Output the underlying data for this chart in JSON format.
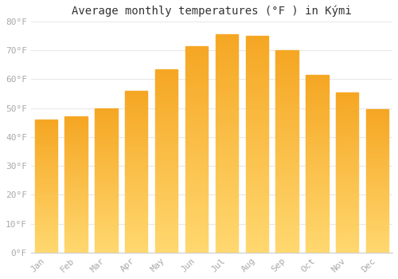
{
  "title": "Average monthly temperatures (°F ) in Kými",
  "months": [
    "Jan",
    "Feb",
    "Mar",
    "Apr",
    "May",
    "Jun",
    "Jul",
    "Aug",
    "Sep",
    "Oct",
    "Nov",
    "Dec"
  ],
  "values": [
    46,
    47,
    50,
    56,
    63.5,
    71.5,
    75.5,
    75,
    70,
    61.5,
    55.5,
    49.5
  ],
  "bar_color_top": "#F5A623",
  "bar_color_bottom": "#FFD870",
  "ylim": [
    0,
    80
  ],
  "yticks": [
    0,
    10,
    20,
    30,
    40,
    50,
    60,
    70,
    80
  ],
  "ytick_labels": [
    "0°F",
    "10°F",
    "20°F",
    "30°F",
    "40°F",
    "50°F",
    "60°F",
    "70°F",
    "80°F"
  ],
  "background_color": "#ffffff",
  "grid_color": "#e8e8e8",
  "title_fontsize": 10,
  "tick_fontsize": 8,
  "tick_color": "#aaaaaa"
}
